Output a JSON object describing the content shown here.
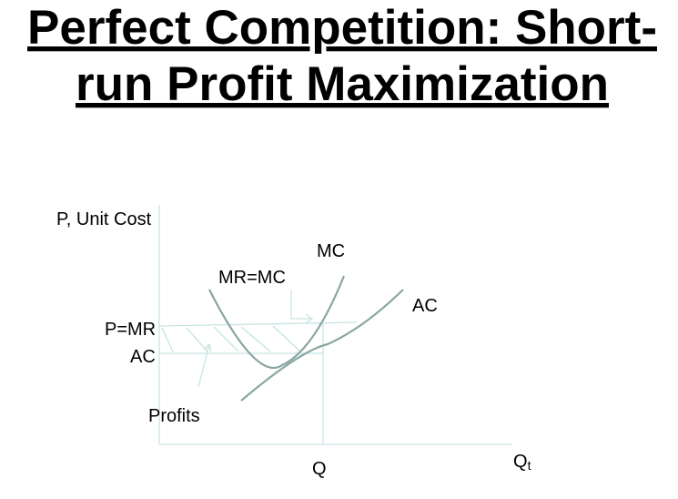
{
  "title_lines": [
    "Perfect Competition: Short-",
    "run Profit Maximization"
  ],
  "y_axis_label": "P, Unit Cost",
  "x_axis_label": {
    "main": "Q",
    "sub": "t"
  },
  "labels": {
    "mc": "MC",
    "mr_eq_mc": "MR=MC",
    "ac_curve": "AC",
    "p_eq_mr": "P=MR",
    "ac_level": "AC",
    "profits": "Profits",
    "q": "Q"
  }
}
